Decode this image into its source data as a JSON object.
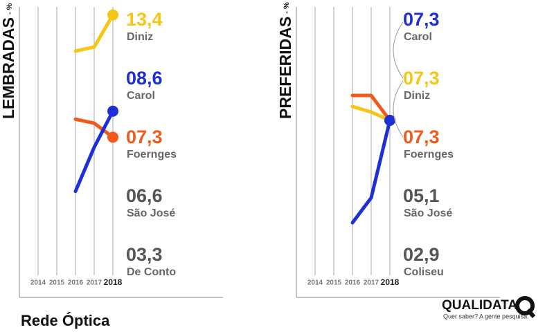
{
  "chart_data": [
    {
      "type": "line",
      "y_label": "LEMBRADAS",
      "y_unit": "- %",
      "categories": [
        "2014",
        "2015",
        "2016",
        "2017",
        "2018"
      ],
      "ylim": [
        0,
        13.8
      ],
      "series": [
        {
          "name": "Diniz",
          "color": "#f5c518",
          "values": [
            null,
            null,
            11.6,
            11.8,
            13.4
          ],
          "value_label": "13,4"
        },
        {
          "name": "Carol",
          "color": "#1f2fd6",
          "values": [
            null,
            null,
            4.6,
            6.8,
            8.6
          ],
          "value_label": "08,6"
        },
        {
          "name": "Foernges",
          "color": "#f05a1a",
          "values": [
            null,
            null,
            8.2,
            8.0,
            7.3
          ],
          "value_label": "07,3"
        },
        {
          "name": "São José",
          "color": "#555555",
          "values": [
            null,
            null,
            null,
            null,
            null
          ],
          "value_label": "06,6"
        },
        {
          "name": "De Conto",
          "color": "#555555",
          "values": [
            null,
            null,
            null,
            null,
            null
          ],
          "value_label": "03,3"
        }
      ]
    },
    {
      "type": "line",
      "y_label": "PREFERIDAS",
      "y_unit": "- %",
      "categories": [
        "2014",
        "2015",
        "2016",
        "2017",
        "2018"
      ],
      "ylim": [
        1.4,
        11.4
      ],
      "series": [
        {
          "name": "Carol",
          "color": "#1f2fd6",
          "values": [
            null,
            null,
            3.6,
            4.5,
            7.3
          ],
          "value_label": "07,3"
        },
        {
          "name": "Diniz",
          "color": "#f5c518",
          "values": [
            null,
            null,
            7.8,
            7.6,
            7.3
          ],
          "value_label": "07,3"
        },
        {
          "name": "Foernges",
          "color": "#f05a1a",
          "values": [
            null,
            null,
            8.2,
            8.2,
            7.3
          ],
          "value_label": "07,3"
        },
        {
          "name": "São José",
          "color": "#555555",
          "values": [
            null,
            null,
            null,
            null,
            null
          ],
          "value_label": "05,1"
        },
        {
          "name": "Coliseu",
          "color": "#555555",
          "values": [
            null,
            null,
            null,
            null,
            null
          ],
          "value_label": "02,9"
        }
      ]
    }
  ],
  "footer": {
    "title": "Rede Óptica"
  },
  "logo": {
    "name": "QUALIDATA",
    "tagline": "Quer saber? A gente pesquisa."
  }
}
